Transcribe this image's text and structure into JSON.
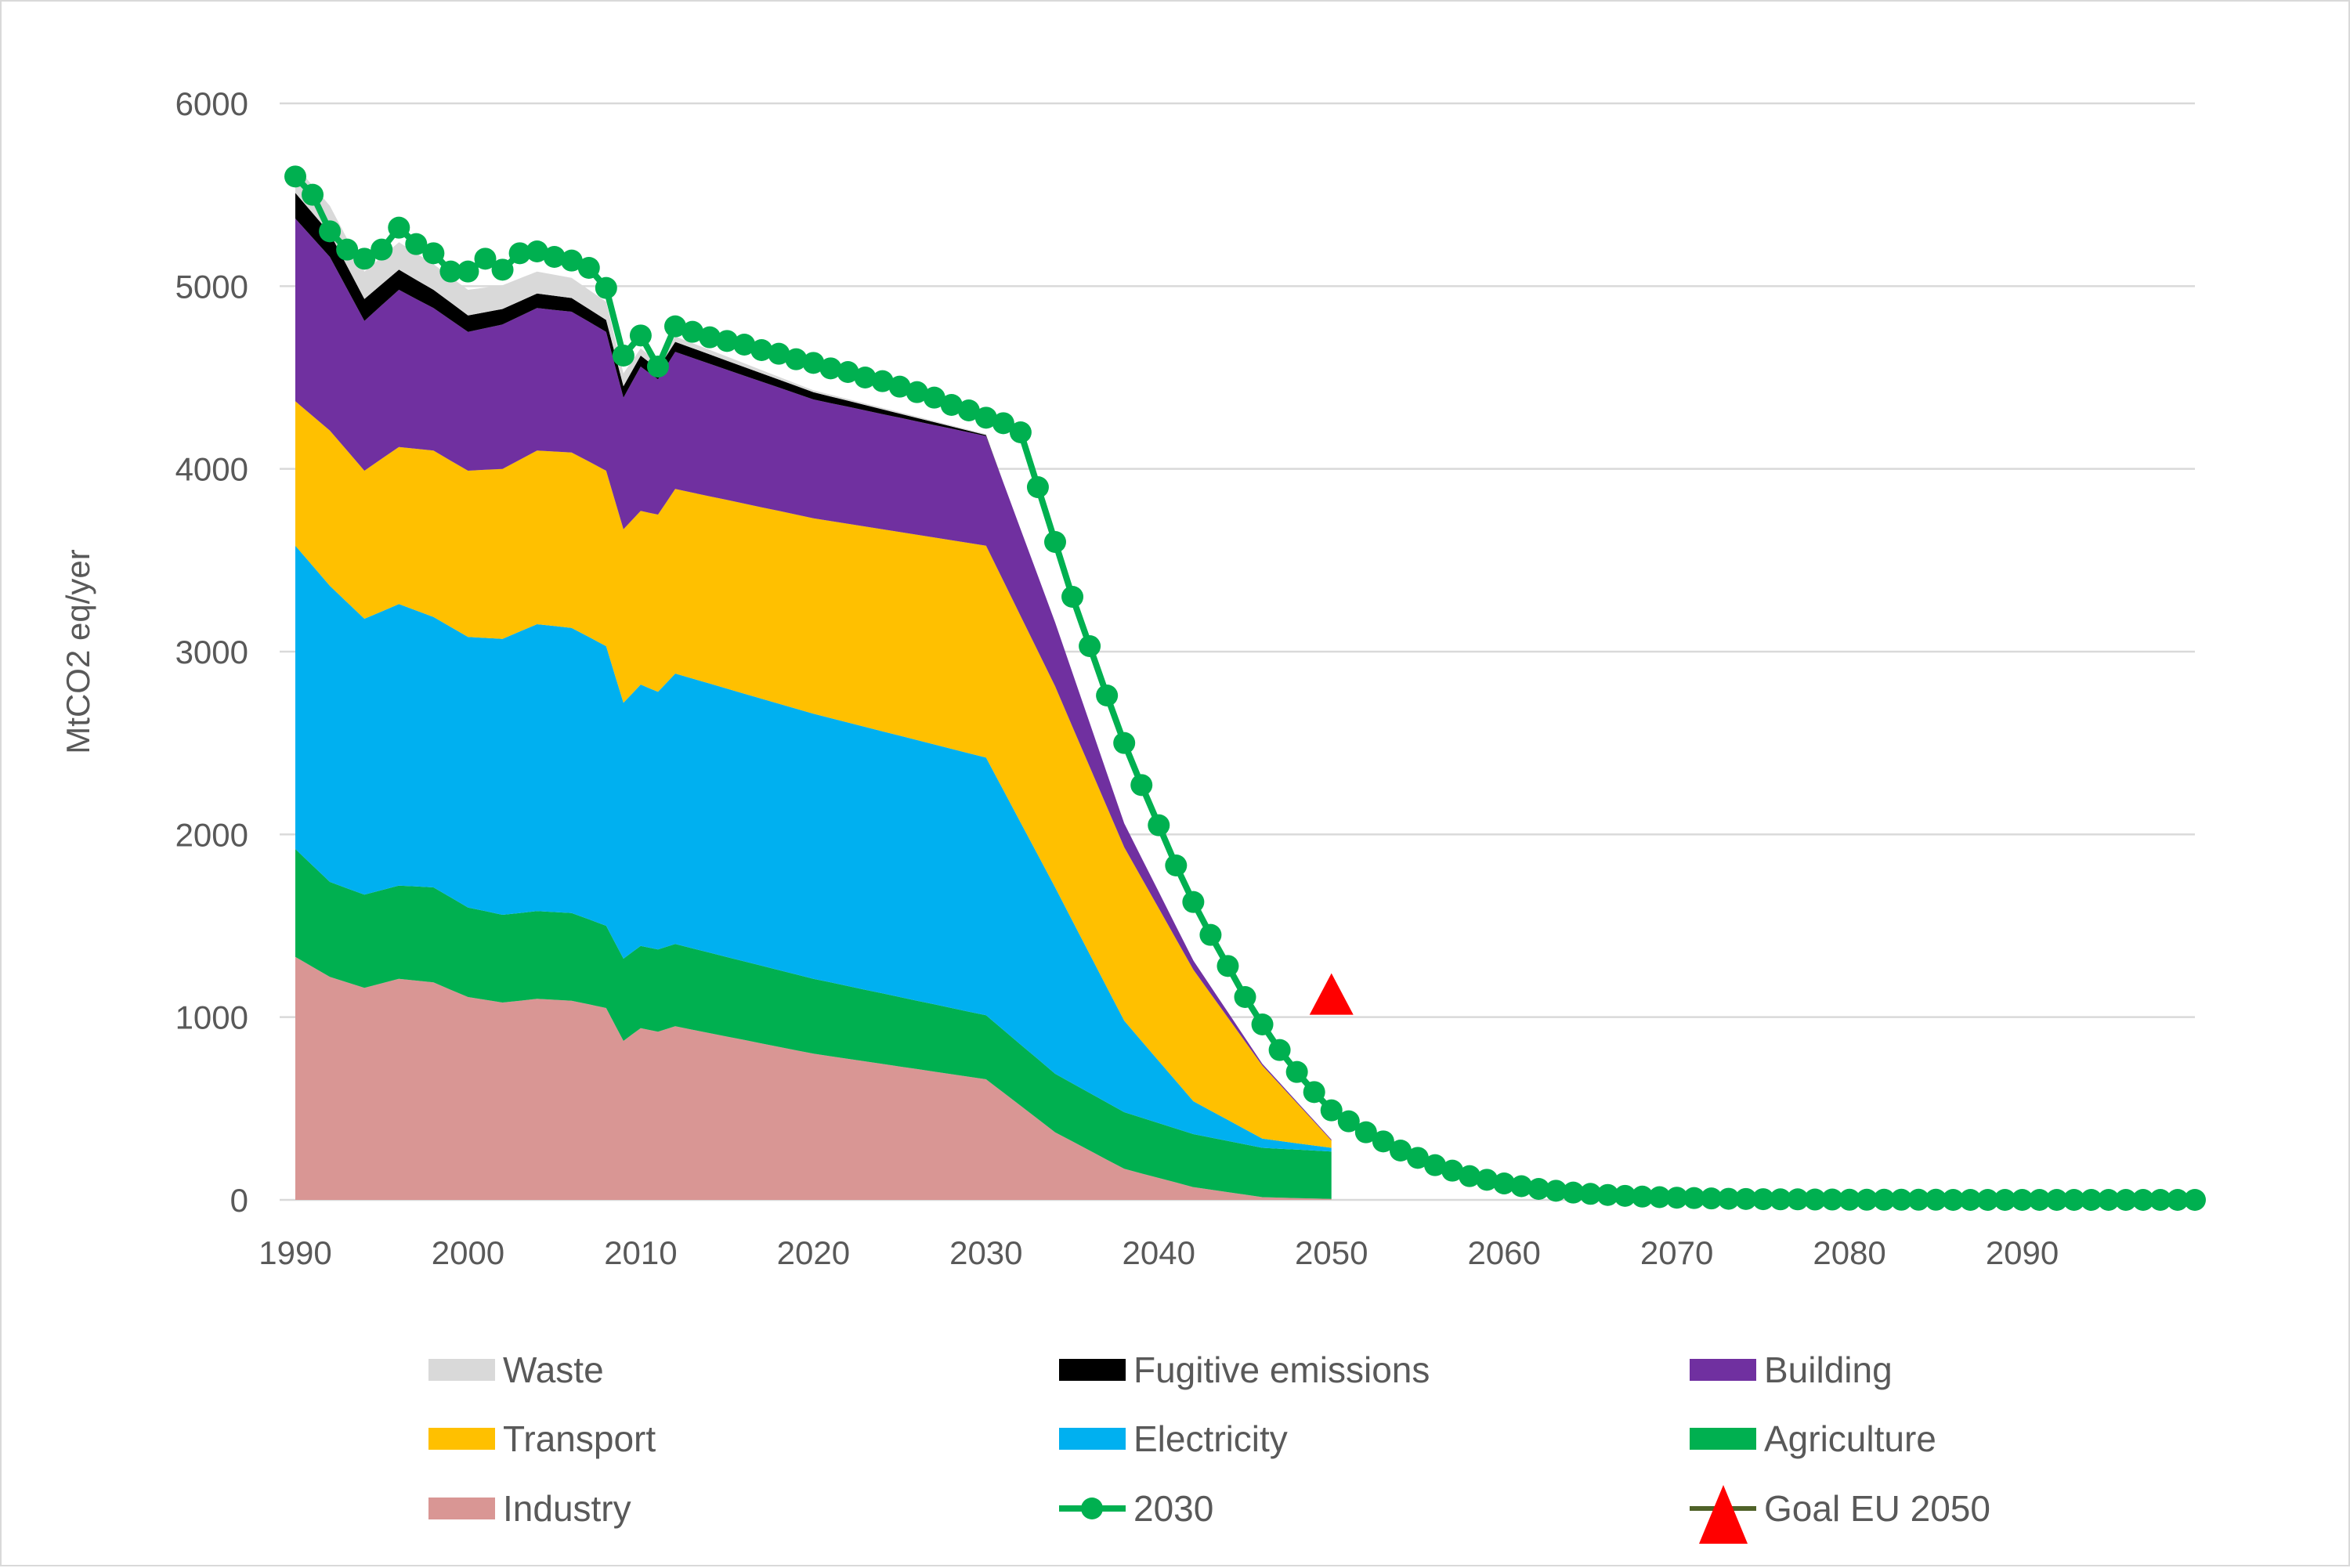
{
  "chart_data": {
    "type": "area",
    "title": "",
    "xlabel": "",
    "ylabel": "MtCO2 eq/yer",
    "xlim": [
      1990,
      2100
    ],
    "ylim": [
      0,
      6000
    ],
    "x_ticks": [
      1990,
      2000,
      2010,
      2020,
      2030,
      2040,
      2050,
      2060,
      2070,
      2080,
      2090
    ],
    "y_ticks": [
      0,
      1000,
      2000,
      3000,
      4000,
      5000,
      6000
    ],
    "grid": "horizontal",
    "legend_position": "bottom",
    "stack_order": [
      "Industry",
      "Agriculture",
      "Electricity",
      "Transport",
      "Building",
      "Fugitive emissions",
      "Waste"
    ],
    "series": [
      {
        "name": "Waste",
        "kind": "area",
        "color": "#d9d9d9",
        "x": [
          1990,
          1992,
          1994,
          1996,
          1998,
          2000,
          2002,
          2004,
          2006,
          2008,
          2010,
          2012,
          2020,
          2030
        ],
        "values": [
          150,
          150,
          150,
          150,
          140,
          140,
          130,
          120,
          110,
          100,
          40,
          30,
          10,
          5
        ]
      },
      {
        "name": "Fugitive emissions",
        "kind": "area",
        "color": "#000000",
        "x": [
          1990,
          1992,
          1994,
          1996,
          1998,
          2000,
          2002,
          2004,
          2006,
          2008,
          2010,
          2012,
          2020,
          2030
        ],
        "values": [
          140,
          130,
          120,
          110,
          100,
          90,
          85,
          80,
          75,
          65,
          60,
          55,
          40,
          5
        ]
      },
      {
        "name": "Building",
        "kind": "area",
        "color": "#7030a0",
        "x": [
          1990,
          1992,
          1994,
          1996,
          1998,
          2000,
          2002,
          2004,
          2006,
          2008,
          2009,
          2010,
          2011,
          2012,
          2020,
          2030,
          2034,
          2038,
          2042,
          2046,
          2050
        ],
        "values": [
          1000,
          950,
          820,
          860,
          780,
          760,
          790,
          780,
          770,
          760,
          720,
          790,
          740,
          750,
          650,
          600,
          350,
          130,
          50,
          10,
          5
        ]
      },
      {
        "name": "Transport",
        "kind": "area",
        "color": "#ffc000",
        "x": [
          1990,
          1992,
          1994,
          1996,
          1998,
          2000,
          2002,
          2004,
          2006,
          2008,
          2009,
          2010,
          2011,
          2012,
          2020,
          2030,
          2034,
          2038,
          2042,
          2046,
          2050
        ],
        "values": [
          790,
          850,
          810,
          860,
          910,
          910,
          930,
          950,
          960,
          960,
          950,
          950,
          970,
          1010,
          1070,
          1160,
          1100,
          950,
          720,
          400,
          40
        ]
      },
      {
        "name": "Electricity",
        "kind": "area",
        "color": "#00b0f0",
        "x": [
          1990,
          1992,
          1994,
          1996,
          1998,
          2000,
          2002,
          2004,
          2006,
          2008,
          2009,
          2010,
          2011,
          2012,
          2020,
          2030,
          2034,
          2038,
          2042,
          2046,
          2050
        ],
        "values": [
          1660,
          1620,
          1510,
          1540,
          1480,
          1480,
          1510,
          1570,
          1560,
          1530,
          1400,
          1430,
          1410,
          1480,
          1450,
          1410,
          1020,
          500,
          180,
          50,
          20
        ]
      },
      {
        "name": "Agriculture",
        "kind": "area",
        "color": "#00b050",
        "x": [
          1990,
          1992,
          1994,
          1996,
          1998,
          2000,
          2002,
          2004,
          2006,
          2008,
          2009,
          2010,
          2011,
          2012,
          2020,
          2030,
          2034,
          2038,
          2042,
          2046,
          2050
        ],
        "values": [
          590,
          520,
          510,
          510,
          520,
          490,
          480,
          480,
          480,
          450,
          450,
          450,
          450,
          450,
          410,
          350,
          320,
          310,
          290,
          270,
          260
        ]
      },
      {
        "name": "Industry",
        "kind": "area",
        "color": "#d99694",
        "x": [
          1990,
          1992,
          1994,
          1996,
          1998,
          2000,
          2002,
          2004,
          2006,
          2008,
          2009,
          2010,
          2011,
          2012,
          2020,
          2030,
          2034,
          2038,
          2042,
          2046,
          2050
        ],
        "values": [
          1330,
          1220,
          1160,
          1210,
          1190,
          1110,
          1080,
          1100,
          1090,
          1050,
          870,
          940,
          920,
          950,
          800,
          660,
          370,
          170,
          70,
          15,
          5
        ]
      },
      {
        "name": "2030",
        "kind": "line",
        "color": "#00b050",
        "x": [
          1990,
          1991,
          1992,
          1993,
          1994,
          1995,
          1996,
          1997,
          1998,
          1999,
          2000,
          2001,
          2002,
          2003,
          2004,
          2005,
          2006,
          2007,
          2008,
          2009,
          2010,
          2011,
          2012,
          2013,
          2014,
          2015,
          2016,
          2017,
          2018,
          2019,
          2020,
          2021,
          2022,
          2023,
          2024,
          2025,
          2026,
          2027,
          2028,
          2029,
          2030,
          2031,
          2032,
          2033,
          2034,
          2035,
          2036,
          2037,
          2038,
          2039,
          2040,
          2041,
          2042,
          2043,
          2044,
          2045,
          2046,
          2047,
          2048,
          2049,
          2050,
          2051,
          2052,
          2053,
          2054,
          2055,
          2056,
          2057,
          2058,
          2059,
          2060,
          2061,
          2062,
          2063,
          2064,
          2065,
          2066,
          2067,
          2068,
          2069,
          2070,
          2071,
          2072,
          2073,
          2074,
          2075,
          2076,
          2077,
          2078,
          2079,
          2080,
          2081,
          2082,
          2083,
          2084,
          2085,
          2086,
          2087,
          2088,
          2089,
          2090,
          2091,
          2092,
          2093,
          2094,
          2095,
          2096,
          2097,
          2098,
          2099,
          2100
        ],
        "values": [
          5600,
          5500,
          5300,
          5200,
          5150,
          5200,
          5320,
          5230,
          5180,
          5080,
          5080,
          5150,
          5090,
          5180,
          5190,
          5160,
          5140,
          5100,
          4990,
          4620,
          4730,
          4560,
          4780,
          4750,
          4720,
          4700,
          4680,
          4650,
          4630,
          4600,
          4580,
          4550,
          4530,
          4500,
          4480,
          4450,
          4420,
          4390,
          4350,
          4320,
          4280,
          4250,
          4200,
          3900,
          3600,
          3300,
          3030,
          2760,
          2500,
          2270,
          2050,
          1830,
          1630,
          1450,
          1280,
          1110,
          960,
          820,
          700,
          590,
          490,
          430,
          370,
          320,
          270,
          230,
          190,
          160,
          130,
          110,
          90,
          75,
          60,
          50,
          40,
          33,
          27,
          22,
          18,
          15,
          12,
          10,
          8,
          6,
          5,
          4,
          3,
          3,
          2,
          2,
          1,
          1,
          1,
          1,
          1,
          1,
          0,
          0,
          0,
          0,
          0,
          0,
          0,
          0,
          0,
          0,
          0,
          0,
          0,
          0,
          0
        ]
      },
      {
        "name": "Goal EU 2050",
        "kind": "marker",
        "color": "#ff0000",
        "marker": "triangle",
        "x": [
          2050
        ],
        "values": [
          1120
        ]
      }
    ]
  },
  "legend": [
    {
      "label": "Waste"
    },
    {
      "label": "Fugitive emissions"
    },
    {
      "label": "Building"
    },
    {
      "label": "Transport"
    },
    {
      "label": "Electricity"
    },
    {
      "label": "Agriculture"
    },
    {
      "label": "Industry"
    },
    {
      "label": "2030"
    },
    {
      "label": "Goal EU 2050"
    }
  ]
}
